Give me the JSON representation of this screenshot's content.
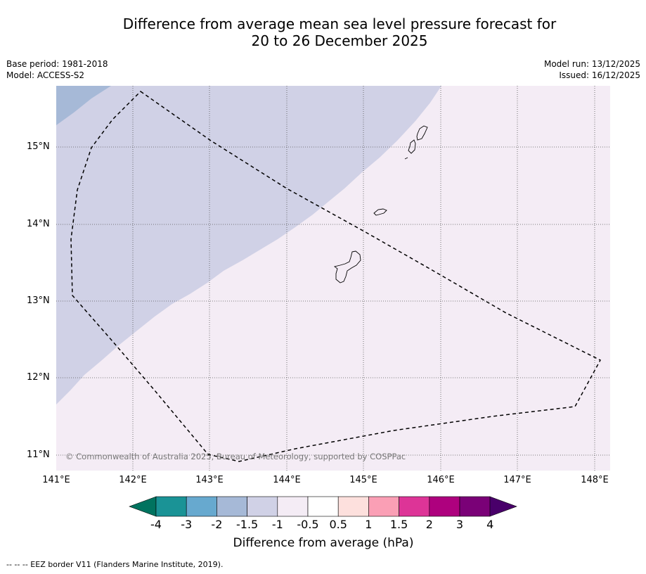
{
  "title_line1": "Difference from average mean sea level pressure forecast for",
  "title_line2": "20 to 26 December 2025",
  "base_period": "Base period: 1981-2018",
  "model": "Model: ACCESS-S2",
  "model_run": "Model run: 13/12/2025",
  "issued": "Issued: 16/12/2025",
  "lat_labels": [
    "15°N",
    "14°N",
    "13°N",
    "12°N",
    "11°N"
  ],
  "lon_labels": [
    "141°E",
    "142°E",
    "143°E",
    "144°E",
    "145°E",
    "146°E",
    "147°E",
    "148°E"
  ],
  "copyright": "© Commonwealth of Australia 2025, Bureau of Meteorology, supported by COSPPac",
  "colorbar": {
    "title": "Difference from average (hPa)",
    "tick_labels": [
      "-4",
      "-3",
      "-2",
      "-1.5",
      "-1",
      "-0.5",
      "0.5",
      "1",
      "1.5",
      "2",
      "3",
      "4"
    ],
    "colors": {
      "below_min": "#00735f",
      "bins": [
        "#1a9396",
        "#67a9cf",
        "#a6b9d7",
        "#d0d1e6",
        "#f4ecf5",
        "#ffffff",
        "#fde0dd",
        "#fa9fb5",
        "#dd3497",
        "#ae017e",
        "#7a0177"
      ],
      "above_max": "#49006a"
    }
  },
  "footnote": "--  --  -- EEZ border V11 (Flanders Marine Institute, 2019).",
  "field_colors": {
    "band_minus2_to_minus1_5": "#a6b9d7",
    "band_minus1_5_to_minus1": "#d0d1e6",
    "band_minus1_to_minus0_5": "#f4ecf5"
  }
}
